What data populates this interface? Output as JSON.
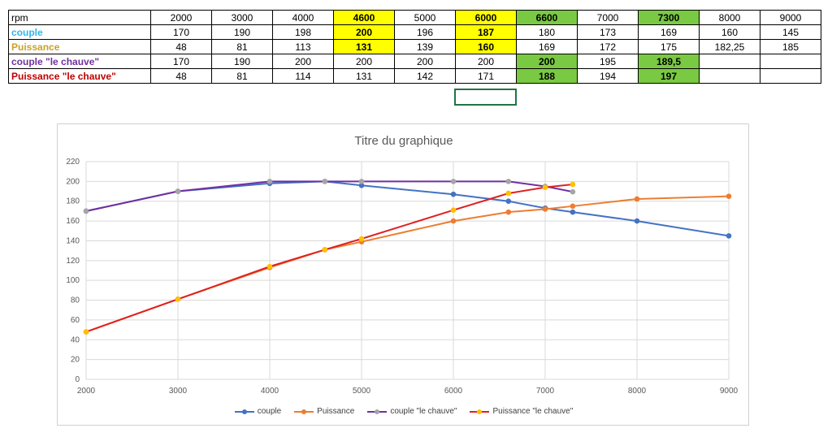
{
  "sheet": {
    "rows": [
      {
        "label": "rpm",
        "label_color": "#000000",
        "bold": false,
        "cells": [
          "2000",
          "3000",
          "4000",
          "4600",
          "5000",
          "6000",
          "6600",
          "7000",
          "7300",
          "8000",
          "9000"
        ]
      },
      {
        "label": "couple",
        "label_color": "#31b6e7",
        "bold": true,
        "cells": [
          "170",
          "190",
          "198",
          "200",
          "196",
          "187",
          "180",
          "173",
          "169",
          "160",
          "145"
        ]
      },
      {
        "label": "Puissance",
        "label_color": "#c9a227",
        "bold": true,
        "cells": [
          "48",
          "81",
          "113",
          "131",
          "139",
          "160",
          "169",
          "172",
          "175",
          "182,25",
          "185"
        ]
      },
      {
        "label": "couple \"le chauve\"",
        "label_color": "#7030a0",
        "bold": true,
        "cells": [
          "170",
          "190",
          "200",
          "200",
          "200",
          "200",
          "200",
          "195",
          "189,5",
          "",
          ""
        ]
      },
      {
        "label": "Puissance \"le chauve\"",
        "label_color": "#c00000",
        "bold": true,
        "cells": [
          "48",
          "81",
          "114",
          "131",
          "142",
          "171",
          "188",
          "194",
          "197",
          "",
          ""
        ]
      }
    ],
    "highlight_colors": {
      "yellow": "#ffff00",
      "green": "#7ac943",
      "text_red": "#e52b1e"
    }
  },
  "chart": {
    "title": "Titre du graphique"
  },
  "chart_data": {
    "type": "scatter",
    "title": "Titre du graphique",
    "xlim": [
      2000,
      9000
    ],
    "ylim": [
      0,
      220
    ],
    "x_ticks": [
      2000,
      3000,
      4000,
      5000,
      6000,
      7000,
      8000,
      9000
    ],
    "y_ticks": [
      0,
      20,
      40,
      60,
      80,
      100,
      120,
      140,
      160,
      180,
      200,
      220
    ],
    "x_tick_labels": [
      "2000",
      "3000",
      "4000",
      "5000",
      "6000",
      "7000",
      "8000",
      "9000"
    ],
    "y_tick_labels": [
      "0",
      "20",
      "40",
      "60",
      "80",
      "100",
      "120",
      "140",
      "160",
      "180",
      "200",
      "220"
    ],
    "grid": true,
    "legend_position": "bottom",
    "series": [
      {
        "name": "couple",
        "color": "#4472c4",
        "marker_color": "#4472c4",
        "x": [
          2000,
          3000,
          4000,
          4600,
          5000,
          6000,
          6600,
          7000,
          7300,
          8000,
          9000
        ],
        "y": [
          170,
          190,
          198,
          200,
          196,
          187,
          180,
          173,
          169,
          160,
          145
        ]
      },
      {
        "name": "Puissance",
        "color": "#ed7d31",
        "marker_color": "#ed7d31",
        "x": [
          2000,
          3000,
          4000,
          4600,
          5000,
          6000,
          6600,
          7000,
          7300,
          8000,
          9000
        ],
        "y": [
          48,
          81,
          113,
          131,
          139,
          160,
          169,
          172,
          175,
          182.25,
          185
        ]
      },
      {
        "name": "couple \"le chauve\"",
        "color": "#7030a0",
        "marker_color": "#a5a5a5",
        "x": [
          2000,
          3000,
          4000,
          4600,
          5000,
          6000,
          6600,
          7000,
          7300
        ],
        "y": [
          170,
          190,
          200,
          200,
          200,
          200,
          200,
          195,
          189.5
        ]
      },
      {
        "name": "Puissance \"le chauve\"",
        "color": "#e02020",
        "marker_color": "#ffc000",
        "x": [
          2000,
          3000,
          4000,
          4600,
          5000,
          6000,
          6600,
          7000,
          7300
        ],
        "y": [
          48,
          81,
          114,
          131,
          142,
          171,
          188,
          194,
          197
        ]
      }
    ]
  }
}
